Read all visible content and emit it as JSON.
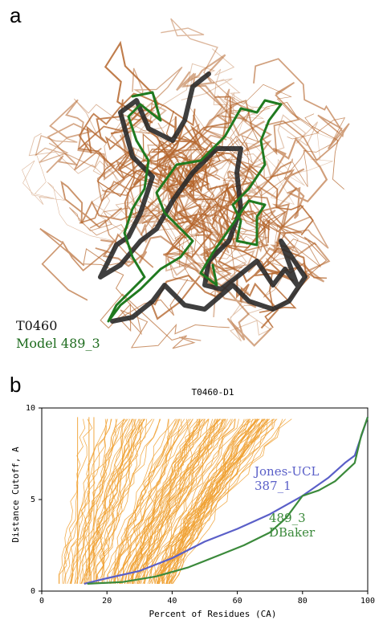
{
  "panel_a": {
    "letter": "a",
    "legend": [
      {
        "label": "T0460",
        "color": "#111111"
      },
      {
        "label": "Model 489_3",
        "color": "#1d6b1d"
      }
    ],
    "colors": {
      "ensemble": "#b4642a",
      "target": "#2a2a2a",
      "model": "#1f7a1f"
    }
  },
  "panel_b": {
    "letter": "b"
  },
  "chart_data": {
    "type": "line",
    "title": "T0460-D1",
    "xlabel": "Percent of Residues (CA)",
    "ylabel": "Distance Cutoff, A",
    "xlim": [
      0,
      100
    ],
    "ylim": [
      0,
      10
    ],
    "xticks": [
      0,
      20,
      40,
      60,
      80,
      100
    ],
    "yticks": [
      0,
      5,
      10
    ],
    "grid": false,
    "series": [
      {
        "name": "Jones-UCL 387_1",
        "color": "#5a5fc8",
        "x": [
          13,
          20,
          30,
          40,
          50,
          60,
          70,
          80,
          88,
          93,
          96,
          100
        ],
        "y": [
          0.4,
          0.7,
          1.1,
          1.8,
          2.7,
          3.4,
          4.2,
          5.2,
          6.2,
          7.0,
          7.4,
          9.5
        ]
      },
      {
        "name": "489_3 DBaker",
        "color": "#3b8a3b",
        "x": [
          14,
          25,
          35,
          45,
          55,
          62,
          70,
          75,
          80,
          85,
          90,
          96,
          98,
          100
        ],
        "y": [
          0.4,
          0.5,
          0.8,
          1.3,
          2.0,
          2.5,
          3.2,
          4.0,
          5.2,
          5.5,
          6.0,
          7.0,
          8.5,
          9.5
        ]
      }
    ],
    "annotations": [
      {
        "lines": [
          "Jones-UCL",
          "387_1"
        ],
        "color": "#5a5fc8"
      },
      {
        "lines": [
          "489_3",
          "DBaker"
        ],
        "color": "#3b8a3b"
      }
    ],
    "background_series": {
      "color": "#f0a030",
      "count": 120,
      "x_at_y_min": [
        5,
        40
      ],
      "x_at_y_max": [
        10,
        78
      ]
    }
  }
}
